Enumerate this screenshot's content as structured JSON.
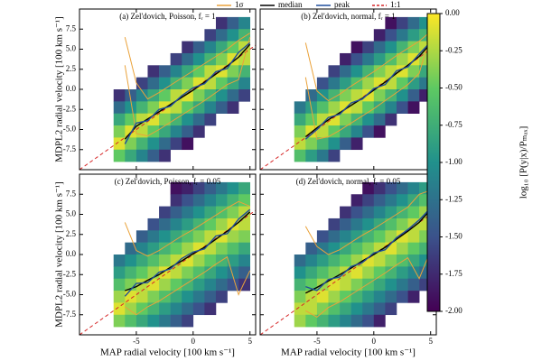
{
  "chart_data": {
    "type": "heatmap",
    "x_label": "MAP radial velocity [100 km s⁻¹]",
    "y_label": "MDPL2 radial velocity [100 km s⁻¹]",
    "xlim": [
      -10,
      5.5
    ],
    "ylim": [
      -10,
      10
    ],
    "xticks": [
      -5,
      0,
      5
    ],
    "yticks": [
      7.5,
      {
        "value": 5,
        "label": "5.0"
      },
      2.5,
      {
        "value": 0,
        "label": "0.0"
      },
      -2.5,
      {
        "value": -5,
        "label": "-5.0"
      },
      -7.5
    ],
    "xbins": [
      -7,
      -6,
      -5,
      -4,
      -3,
      -2,
      -1,
      0,
      1,
      2,
      3,
      4,
      5
    ],
    "ybins": [
      9,
      7.5,
      6,
      4.5,
      3,
      1.5,
      0,
      -1.5,
      -3,
      -4.5,
      -6,
      -7.5,
      -9
    ],
    "line_x": [
      -6,
      -5,
      -4,
      -3,
      -2,
      -1,
      0,
      1,
      2,
      3,
      4,
      5
    ],
    "series_styles": [
      {
        "name": "1σ",
        "color": "#eaa23a"
      },
      {
        "name": "median",
        "color": "#000000"
      },
      {
        "name": "peak",
        "color": "#1f4e9c"
      },
      {
        "name": "1:1",
        "color": "#d62728",
        "dashed": true
      }
    ],
    "colorbar": {
      "label": "log₁₀ [P(y|x)/Pₘₐₓ]",
      "clim": [
        -2,
        0
      ],
      "colormap": [
        "#440154",
        "#3b528b",
        "#21918c",
        "#5ec962",
        "#fde725"
      ],
      "ticks": [
        {
          "value": 0,
          "label": "0.00"
        },
        -0.25,
        {
          "value": -0.5,
          "label": "-0.50"
        },
        -0.75,
        {
          "value": -1,
          "label": "-1.00"
        },
        -1.25,
        {
          "value": -1.5,
          "label": "-1.50"
        },
        -1.75,
        {
          "value": -2,
          "label": "-2.00"
        }
      ]
    },
    "panels": [
      {
        "title": "(a) Zel'dovich, Poisson, fᵣ = 1",
        "values": [
          [
            null,
            null,
            null,
            null,
            null,
            null,
            null,
            null,
            null,
            -1.7,
            -1.4,
            -1.1
          ],
          [
            null,
            null,
            null,
            null,
            null,
            null,
            null,
            null,
            -1.6,
            -1.3,
            -1.0,
            -0.7
          ],
          [
            null,
            null,
            null,
            null,
            null,
            null,
            -1.7,
            -1.4,
            -1.1,
            -0.8,
            -0.5,
            -0.2
          ],
          [
            null,
            null,
            null,
            null,
            null,
            -1.6,
            -1.3,
            -1.0,
            -0.7,
            -0.4,
            -0.1,
            -0.2
          ],
          [
            null,
            null,
            null,
            -1.7,
            -1.4,
            -1.1,
            -0.8,
            -0.5,
            -0.2,
            -0.1,
            -0.4,
            -0.7
          ],
          [
            null,
            null,
            -1.6,
            -1.3,
            -1.0,
            -0.7,
            -0.4,
            -0.1,
            -0.2,
            -0.5,
            -0.8,
            -1.1
          ],
          [
            -1.7,
            -1.4,
            -1.1,
            -0.8,
            -0.5,
            -0.2,
            -0.1,
            -0.4,
            -0.7,
            -1.0,
            -1.3,
            -1.6
          ],
          [
            -1.3,
            -1.0,
            -0.7,
            -0.4,
            -0.1,
            -0.2,
            -0.5,
            -0.8,
            -1.1,
            -1.4,
            -1.7,
            null
          ],
          [
            -0.8,
            -0.5,
            -0.2,
            -0.1,
            -0.4,
            -0.7,
            -1.0,
            -1.3,
            -1.6,
            null,
            null,
            null
          ],
          [
            -0.4,
            -0.1,
            -0.2,
            -0.5,
            -0.8,
            -1.1,
            -1.4,
            -1.7,
            null,
            null,
            null,
            null
          ],
          [
            -0.1,
            -0.4,
            -0.7,
            -1.0,
            -1.3,
            -1.6,
            -1.9,
            null,
            null,
            null,
            null,
            null
          ],
          [
            -0.5,
            -0.8,
            -1.1,
            -1.4,
            -1.7,
            null,
            null,
            null,
            null,
            null,
            null,
            null
          ]
        ],
        "sigma_upper": [
          6.5,
          0.8,
          -1.2,
          -0.4,
          0.5,
          1.4,
          2.3,
          3.2,
          4.1,
          5.0,
          6.1,
          7.0
        ],
        "sigma_lower": [
          3.0,
          -5.5,
          -5.8,
          -5.0,
          -4.1,
          -3.2,
          -2.3,
          -1.4,
          -0.4,
          0.6,
          1.2,
          6.5
        ],
        "median": [
          -6.2,
          -4.6,
          -3.7,
          -2.8,
          -1.9,
          -1.0,
          -0.1,
          0.9,
          1.9,
          2.9,
          4.0,
          5.6
        ],
        "peak": [
          -6.8,
          -4.2,
          -3.9,
          -2.5,
          -2.1,
          -0.8,
          0.2,
          0.7,
          2.2,
          2.6,
          4.6,
          5.8
        ]
      },
      {
        "title": "(b) Zel'dovich, normal, fᵣ = 1",
        "values": [
          [
            null,
            null,
            null,
            null,
            null,
            null,
            null,
            null,
            -1.9,
            -1.6,
            -1.3,
            -1.0
          ],
          [
            null,
            null,
            null,
            null,
            null,
            null,
            null,
            -1.8,
            -1.5,
            -1.2,
            -0.9,
            -0.7
          ],
          [
            null,
            null,
            null,
            null,
            null,
            -1.9,
            -1.6,
            -1.3,
            -1.0,
            -0.7,
            -0.4,
            -0.2
          ],
          [
            null,
            null,
            null,
            null,
            -1.8,
            -1.5,
            -1.2,
            -0.9,
            -0.6,
            -0.3,
            -0.1,
            -0.3
          ],
          [
            null,
            null,
            null,
            -1.6,
            -1.3,
            -1.0,
            -0.7,
            -0.4,
            -0.2,
            -0.1,
            -0.4,
            -0.8
          ],
          [
            null,
            null,
            -1.5,
            -1.2,
            -0.9,
            -0.6,
            -0.3,
            -0.1,
            -0.2,
            -0.5,
            -0.9,
            -1.2
          ],
          [
            null,
            -1.3,
            -1.0,
            -0.7,
            -0.4,
            -0.2,
            -0.1,
            -0.4,
            -0.7,
            -1.0,
            -1.4,
            -1.8
          ],
          [
            -1.2,
            -0.9,
            -0.6,
            -0.3,
            -0.1,
            -0.2,
            -0.5,
            -0.8,
            -1.1,
            -1.5,
            -1.9,
            null
          ],
          [
            -0.8,
            -0.5,
            -0.2,
            -0.1,
            -0.4,
            -0.7,
            -1.0,
            -1.3,
            -1.7,
            null,
            null,
            null
          ],
          [
            -0.4,
            -0.1,
            -0.2,
            -0.5,
            -0.8,
            -1.1,
            -1.5,
            -1.9,
            null,
            null,
            null,
            null
          ],
          [
            -0.2,
            -0.4,
            -0.7,
            -1.0,
            -1.4,
            -1.8,
            null,
            null,
            null,
            null,
            null,
            null
          ],
          [
            -0.6,
            -0.9,
            -1.2,
            -1.6,
            null,
            null,
            null,
            null,
            null,
            null,
            null,
            null
          ]
        ],
        "sigma_upper": [
          5.8,
          -0.2,
          -1.4,
          -0.6,
          0.4,
          1.3,
          2.2,
          3.2,
          4.2,
          5.1,
          6.0,
          7.2
        ],
        "sigma_lower": [
          1.5,
          -6.2,
          -5.9,
          -5.1,
          -4.2,
          -3.3,
          -2.4,
          -1.4,
          -0.4,
          0.6,
          2.0,
          6.8
        ],
        "median": [
          -5.9,
          -4.8,
          -3.8,
          -2.9,
          -2.0,
          -1.1,
          -0.1,
          0.9,
          2.0,
          3.0,
          4.1,
          5.7
        ],
        "peak": [
          -6.2,
          -5.0,
          -3.5,
          -3.1,
          -1.7,
          -1.2,
          0.1,
          0.6,
          2.3,
          2.8,
          4.4,
          5.9
        ]
      },
      {
        "title": "(c) Zel'dovich, Poisson, fᵣ = 0.05",
        "values": [
          [
            null,
            null,
            null,
            null,
            null,
            -1.9,
            -1.8,
            -1.6,
            -1.4,
            -1.2,
            -1.0,
            -0.8
          ],
          [
            null,
            null,
            null,
            null,
            null,
            -1.7,
            -1.5,
            -1.3,
            -1.1,
            -0.9,
            -0.7,
            -0.5
          ],
          [
            null,
            null,
            null,
            null,
            -1.6,
            -1.4,
            -1.2,
            -1.0,
            -0.8,
            -0.6,
            -0.4,
            -0.2
          ],
          [
            null,
            null,
            null,
            -1.5,
            -1.3,
            -1.1,
            -0.9,
            -0.7,
            -0.5,
            -0.3,
            -0.1,
            -0.2
          ],
          [
            null,
            null,
            -1.4,
            -1.2,
            -1.0,
            -0.8,
            -0.6,
            -0.4,
            -0.2,
            -0.1,
            -0.3,
            -0.4
          ],
          [
            null,
            -1.3,
            -1.1,
            -0.9,
            -0.7,
            -0.5,
            -0.3,
            -0.1,
            -0.2,
            -0.4,
            -0.6,
            -0.8
          ],
          [
            -1.2,
            -1.0,
            -0.8,
            -0.6,
            -0.4,
            -0.2,
            -0.1,
            -0.3,
            -0.5,
            -0.7,
            -0.9,
            -1.1
          ],
          [
            -0.9,
            -0.7,
            -0.5,
            -0.3,
            -0.1,
            -0.2,
            -0.4,
            -0.6,
            -0.8,
            -1.0,
            -1.2,
            -1.4
          ],
          [
            -0.6,
            -0.4,
            -0.2,
            -0.1,
            -0.3,
            -0.5,
            -0.7,
            -0.9,
            -1.1,
            -1.3,
            -1.5,
            -1.7
          ],
          [
            -0.3,
            -0.1,
            -0.2,
            -0.4,
            -0.6,
            -0.8,
            -1.0,
            -1.2,
            -1.4,
            -1.6,
            null,
            null
          ],
          [
            -0.1,
            -0.3,
            -0.5,
            -0.7,
            -0.9,
            -1.1,
            -1.3,
            -1.5,
            -1.7,
            null,
            null,
            null
          ],
          [
            -0.4,
            -0.6,
            -0.8,
            -1.0,
            -1.2,
            -1.4,
            -1.6,
            null,
            null,
            null,
            null,
            null
          ]
        ],
        "sigma_upper": [
          4.0,
          0.5,
          -0.2,
          0.5,
          1.4,
          2.3,
          3.1,
          4.0,
          4.9,
          5.8,
          6.6,
          6.0
        ],
        "sigma_lower": [
          -6.5,
          -7.5,
          -6.5,
          -5.8,
          -4.9,
          -4.0,
          -3.1,
          -2.2,
          -1.2,
          -0.3,
          -5.0,
          -2.0
        ],
        "median": [
          -4.5,
          -4.0,
          -3.2,
          -2.5,
          -1.6,
          -0.8,
          0.1,
          0.9,
          1.9,
          2.9,
          4.0,
          5.3
        ],
        "peak": [
          -5.2,
          -3.6,
          -3.5,
          -2.2,
          -1.8,
          -0.5,
          0.3,
          0.7,
          2.3,
          2.6,
          4.4,
          5.6
        ]
      },
      {
        "title": "(d) Zel'dovich, normal, fᵣ = 0.05",
        "values": [
          [
            null,
            null,
            null,
            null,
            null,
            null,
            -1.9,
            -1.7,
            -1.5,
            -1.3,
            -1.1,
            -0.9
          ],
          [
            null,
            null,
            null,
            null,
            null,
            -1.8,
            -1.6,
            -1.4,
            -1.2,
            -1.0,
            -0.8,
            -0.6
          ],
          [
            null,
            null,
            null,
            null,
            -1.7,
            -1.5,
            -1.3,
            -1.1,
            -0.9,
            -0.7,
            -0.5,
            -0.3
          ],
          [
            null,
            null,
            null,
            -1.6,
            -1.4,
            -1.2,
            -1.0,
            -0.8,
            -0.6,
            -0.4,
            -0.2,
            -0.2
          ],
          [
            null,
            null,
            -1.5,
            -1.3,
            -1.1,
            -0.9,
            -0.7,
            -0.5,
            -0.3,
            -0.1,
            -0.2,
            -0.4
          ],
          [
            null,
            -1.4,
            -1.2,
            -1.0,
            -0.8,
            -0.6,
            -0.4,
            -0.2,
            -0.1,
            -0.3,
            -0.5,
            -0.7
          ],
          [
            -1.3,
            -1.1,
            -0.9,
            -0.7,
            -0.5,
            -0.3,
            -0.1,
            -0.2,
            -0.4,
            -0.6,
            -0.8,
            -1.0
          ],
          [
            -1.0,
            -0.8,
            -0.6,
            -0.4,
            -0.2,
            -0.1,
            -0.3,
            -0.5,
            -0.7,
            -0.9,
            -1.1,
            -1.3
          ],
          [
            -0.7,
            -0.5,
            -0.3,
            -0.1,
            -0.2,
            -0.4,
            -0.6,
            -0.8,
            -1.0,
            -1.2,
            -1.4,
            -1.6
          ],
          [
            -0.4,
            -0.2,
            -0.1,
            -0.3,
            -0.5,
            -0.7,
            -0.9,
            -1.1,
            -1.3,
            -1.5,
            -1.8,
            null
          ],
          [
            -0.2,
            -0.2,
            -0.4,
            -0.6,
            -0.8,
            -1.0,
            -1.2,
            -1.4,
            -1.6,
            null,
            null,
            null
          ],
          [
            -0.3,
            -0.5,
            -0.7,
            -0.9,
            -1.1,
            -1.3,
            -1.5,
            -1.8,
            null,
            null,
            null,
            null
          ]
        ],
        "sigma_upper": [
          3.5,
          1.0,
          0.0,
          0.6,
          1.5,
          2.4,
          3.2,
          4.1,
          5.0,
          5.9,
          7.5,
          8.0
        ],
        "sigma_lower": [
          -7.0,
          -7.8,
          -6.6,
          -5.9,
          -5.0,
          -4.1,
          -3.2,
          -2.3,
          -1.3,
          -0.4,
          -3.0,
          0.5
        ],
        "median": [
          -4.8,
          -4.1,
          -3.3,
          -2.5,
          -1.7,
          -0.8,
          0.0,
          0.9,
          1.9,
          2.9,
          4.0,
          5.6
        ],
        "peak": [
          -4.0,
          -4.5,
          -3.1,
          -2.8,
          -1.5,
          -1.0,
          0.2,
          0.6,
          2.1,
          3.1,
          4.3,
          5.8
        ]
      }
    ]
  }
}
